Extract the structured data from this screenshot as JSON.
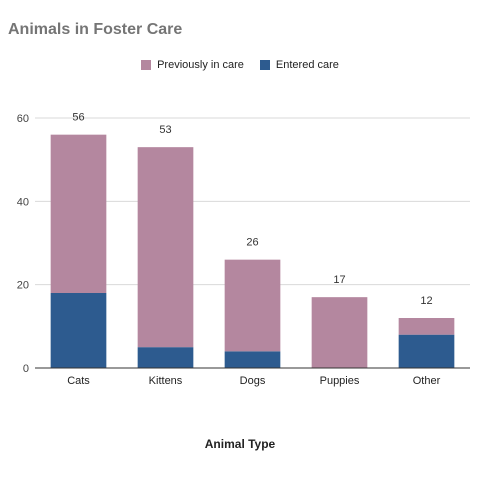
{
  "chart_data": {
    "type": "bar",
    "stacked": true,
    "title": "Animals in Foster Care",
    "xlabel": "Animal Type",
    "ylabel": "",
    "categories": [
      "Cats",
      "Kittens",
      "Dogs",
      "Puppies",
      "Other"
    ],
    "series": [
      {
        "name": "Entered care",
        "values": [
          18,
          5,
          4,
          0,
          8
        ],
        "color": "#2d5b8f"
      },
      {
        "name": "Previously in care",
        "values": [
          38,
          48,
          22,
          17,
          4
        ],
        "color": "#b4879f"
      }
    ],
    "totals": [
      56,
      53,
      26,
      17,
      12
    ],
    "ylim": [
      0,
      60
    ],
    "yticks": [
      0,
      20,
      40,
      60
    ],
    "grid": true,
    "legend_position": "top",
    "legend_order": [
      "Previously in care",
      "Entered care"
    ]
  }
}
